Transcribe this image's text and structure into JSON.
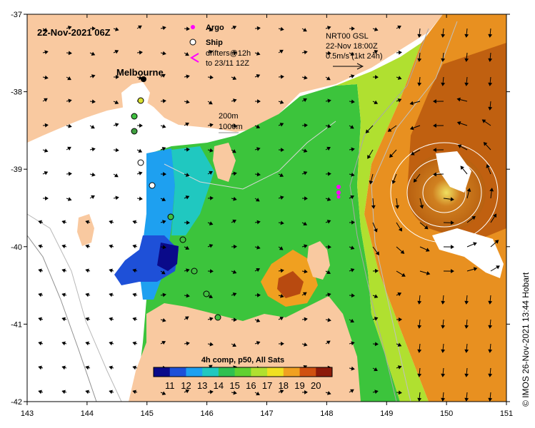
{
  "map": {
    "date_label": "22-Nov-2021 06Z",
    "city_label": "Melbourne",
    "legend": {
      "argo": "Argo",
      "ship": "Ship",
      "drifters_line1": "drifters@12h",
      "drifters_line2": "to 23/11 12Z"
    },
    "current_info": {
      "line1": "NRT00 GSL",
      "line2": "22-Nov 18:00Z",
      "line3": "0.5m/s (1kt 24h)"
    },
    "depth_legend": {
      "line1": "200m",
      "line2": "1000m"
    },
    "colorbar": {
      "title": "4h comp, p50, All Sats",
      "ticks": [
        "11",
        "12",
        "13",
        "14",
        "15",
        "16",
        "17",
        "18",
        "19",
        "20"
      ],
      "colors": [
        "#0a0a8a",
        "#1e50d8",
        "#1ea0f0",
        "#20c8c0",
        "#30c050",
        "#60d030",
        "#b0e030",
        "#f0e020",
        "#f0a020",
        "#d05010",
        "#8c1a0a"
      ]
    },
    "lon_ticks": [
      "143",
      "144",
      "145",
      "146",
      "147",
      "148",
      "149",
      "150",
      "151"
    ],
    "lat_ticks": [
      "-37",
      "-38",
      "-39",
      "-40",
      "-41",
      "-42"
    ],
    "credit": "© IMOS 26-Nov-2021 13:44 Hobart",
    "colors": {
      "land": "#f9c9a0",
      "no_data_sea": "#ffffff",
      "argo": "#ff00ff",
      "ship_fill": "#ffffff",
      "ship_edge": "#000000",
      "drifter": "#ff00ff"
    }
  }
}
